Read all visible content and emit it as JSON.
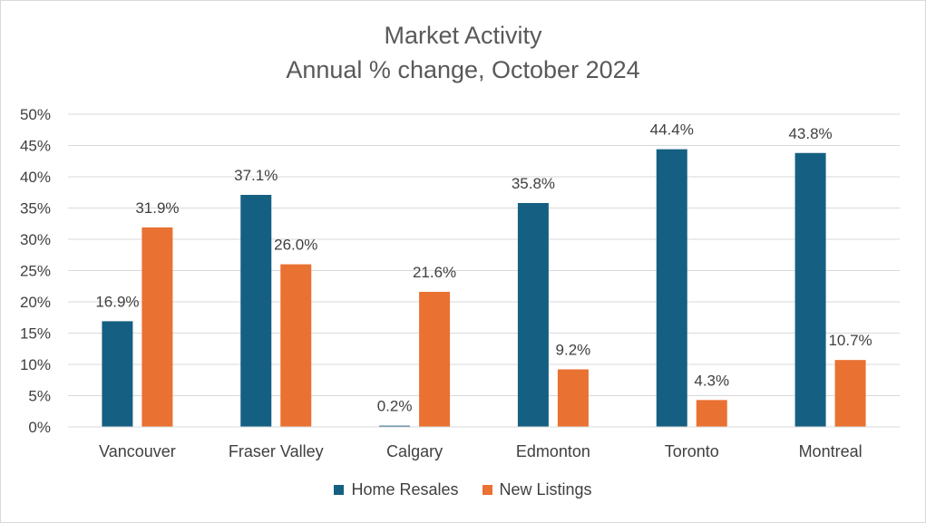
{
  "chart_data": {
    "type": "bar",
    "title": "Market Activity",
    "subtitle": "Annual % change, October 2024",
    "categories": [
      "Vancouver",
      "Fraser Valley",
      "Calgary",
      "Edmonton",
      "Toronto",
      "Montreal"
    ],
    "series": [
      {
        "name": "Home Resales",
        "color": "#156082",
        "values": [
          16.9,
          37.1,
          0.2,
          35.8,
          44.4,
          43.8
        ],
        "labels": [
          "16.9%",
          "37.1%",
          "0.2%",
          "35.8%",
          "44.4%",
          "43.8%"
        ]
      },
      {
        "name": "New Listings",
        "color": "#E97132",
        "values": [
          31.9,
          26.0,
          21.6,
          9.2,
          4.3,
          10.7
        ],
        "labels": [
          "31.9%",
          "26.0%",
          "21.6%",
          "9.2%",
          "4.3%",
          "10.7%"
        ]
      }
    ],
    "yticks": [
      "0%",
      "5%",
      "10%",
      "15%",
      "20%",
      "25%",
      "30%",
      "35%",
      "40%",
      "45%",
      "50%"
    ],
    "ylim": [
      0,
      50
    ],
    "grid": true,
    "legend_position": "bottom"
  }
}
